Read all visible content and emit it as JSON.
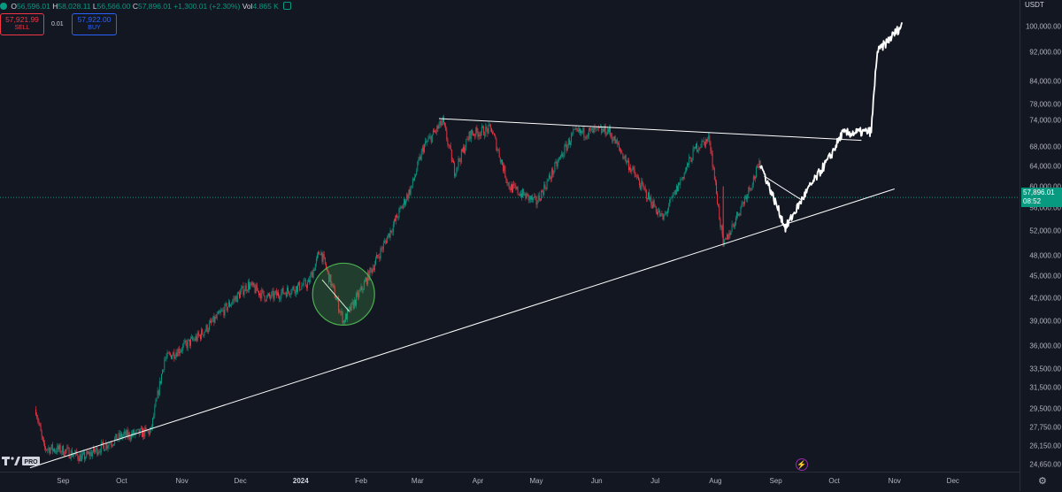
{
  "header": {
    "open_label": "O",
    "open": "56,596.01",
    "high_label": "H",
    "high": "58,028.11",
    "low_label": "L",
    "low": "56,566.00",
    "close_label": "C",
    "close": "57,896.01",
    "change": "+1,300.01 (+2.30%)",
    "vol_label": "Vol",
    "vol": "4.865 K",
    "sell_price": "57,921.99",
    "sell_label": "SELL",
    "spread": "0.01",
    "buy_price": "57,922.00",
    "buy_label": "BUY"
  },
  "axis": {
    "currency": "USDT",
    "price_ticks": [
      "100,000.00",
      "92,000.00",
      "84,000.00",
      "78,000.00",
      "74,000.00",
      "68,000.00",
      "64,000.00",
      "60,000.00",
      "56,000.00",
      "52,000.00",
      "48,000.00",
      "45,000.00",
      "42,000.00",
      "39,000.00",
      "36,000.00",
      "33,500.00",
      "31,500.00",
      "29,500.00",
      "27,750.00",
      "26,150.00",
      "24,650.00"
    ],
    "last_price": "57,896.01",
    "countdown": "08:52",
    "time_labels": [
      "Sep",
      "Oct",
      "Nov",
      "Dec",
      "2024",
      "Feb",
      "Mar",
      "Apr",
      "May",
      "Jun",
      "Jul",
      "Aug",
      "Sep",
      "Oct",
      "Nov",
      "Dec"
    ]
  },
  "logo_text": "PRO",
  "colors": {
    "up": "#089981",
    "down": "#f23645",
    "projection": "#ffffff",
    "circle": "#4caf50",
    "background": "#131722"
  },
  "icons": [
    "bolt-icon",
    "gear-icon",
    "tradingview-logo-icon"
  ],
  "chart_data": {
    "type": "candlestick",
    "symbol_quote": "USDT",
    "scale": "log",
    "x_range": [
      "2023-08-20",
      "2024-12-31"
    ],
    "y_range": [
      24000,
      103000
    ],
    "series": [
      {
        "kind": "ohlc",
        "unit": "USDT",
        "path": [
          [
            "2023-08-18",
            29400
          ],
          [
            "2023-08-22",
            26000
          ],
          [
            "2023-09-01",
            25800
          ],
          [
            "2023-09-11",
            25200
          ],
          [
            "2023-10-01",
            27000
          ],
          [
            "2023-10-16",
            27400
          ],
          [
            "2023-10-23",
            34500
          ],
          [
            "2023-11-10",
            37200
          ],
          [
            "2023-12-05",
            43800
          ],
          [
            "2023-12-15",
            42000
          ],
          [
            "2024-01-05",
            44000
          ],
          [
            "2024-01-11",
            48900
          ],
          [
            "2024-01-23",
            39000
          ],
          [
            "2024-02-01",
            43000
          ],
          [
            "2024-02-13",
            50000
          ],
          [
            "2024-02-27",
            60000
          ],
          [
            "2024-03-04",
            68000
          ],
          [
            "2024-03-14",
            73800
          ],
          [
            "2024-03-20",
            63000
          ],
          [
            "2024-03-28",
            71000
          ],
          [
            "2024-04-08",
            72000
          ],
          [
            "2024-04-17",
            60000
          ],
          [
            "2024-05-01",
            57000
          ],
          [
            "2024-05-20",
            71000
          ],
          [
            "2024-06-07",
            71800
          ],
          [
            "2024-06-24",
            60000
          ],
          [
            "2024-07-05",
            54000
          ],
          [
            "2024-07-22",
            68000
          ],
          [
            "2024-07-29",
            69800
          ],
          [
            "2024-08-05",
            49500
          ],
          [
            "2024-08-24",
            64500
          ]
        ]
      },
      {
        "kind": "projection",
        "unit": "USDT",
        "path": [
          [
            "2024-08-24",
            64500
          ],
          [
            "2024-09-06",
            52500
          ],
          [
            "2024-09-16",
            58500
          ],
          [
            "2024-09-29",
            66000
          ],
          [
            "2024-10-05",
            71000
          ],
          [
            "2024-10-20",
            71500
          ],
          [
            "2024-10-23",
            92000
          ],
          [
            "2024-11-05",
            100500
          ]
        ]
      }
    ],
    "lines": [
      {
        "name": "resistance",
        "from": [
          "2024-03-12",
          74500
        ],
        "to": [
          "2024-10-15",
          69500
        ]
      },
      {
        "name": "support",
        "from": [
          "2023-08-15",
          24400
        ],
        "to": [
          "2024-11-01",
          59500
        ]
      },
      {
        "name": "pullback",
        "from": [
          "2024-01-12",
          44500
        ],
        "to": [
          "2024-01-26",
          40200
        ]
      },
      {
        "name": "pullback",
        "from": [
          "2024-08-26",
          62000
        ],
        "to": [
          "2024-09-14",
          57500
        ]
      }
    ],
    "annotations": [
      {
        "type": "circle",
        "at": [
          "2024-01-23",
          42500
        ]
      }
    ],
    "last_price": 57896.01
  }
}
